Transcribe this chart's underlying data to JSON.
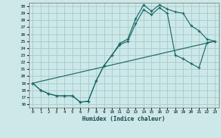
{
  "xlabel": "Humidex (Indice chaleur)",
  "bg_color": "#cce8e8",
  "grid_color": "#aacccc",
  "line_color": "#1a6666",
  "xlim": [
    -0.5,
    23.5
  ],
  "ylim": [
    15.5,
    30.5
  ],
  "xticks": [
    0,
    1,
    2,
    3,
    4,
    5,
    6,
    7,
    8,
    9,
    10,
    11,
    12,
    13,
    14,
    15,
    16,
    17,
    18,
    19,
    20,
    21,
    22,
    23
  ],
  "yticks": [
    16,
    17,
    18,
    19,
    20,
    21,
    22,
    23,
    24,
    25,
    26,
    27,
    28,
    29,
    30
  ],
  "line1_x": [
    0,
    1,
    2,
    3,
    4,
    5,
    6,
    7,
    8,
    9,
    10,
    11,
    12,
    13,
    14,
    15,
    16,
    17,
    18,
    19,
    20,
    21,
    22,
    23
  ],
  "line1_y": [
    19,
    18,
    17.5,
    17.2,
    17.2,
    17.2,
    16.3,
    16.4,
    19.3,
    21.5,
    23.0,
    24.7,
    25.3,
    28.2,
    30.2,
    29.3,
    30.2,
    29.6,
    29.2,
    29.0,
    27.2,
    26.5,
    25.3,
    25.0
  ],
  "line2_x": [
    0,
    1,
    2,
    3,
    4,
    5,
    6,
    7,
    8,
    9,
    10,
    11,
    12,
    13,
    14,
    15,
    16,
    17,
    18,
    19,
    20,
    21,
    22,
    23
  ],
  "line2_y": [
    19,
    18,
    17.5,
    17.2,
    17.2,
    17.2,
    16.3,
    16.4,
    19.3,
    21.5,
    23.0,
    24.5,
    25.0,
    27.5,
    29.5,
    28.8,
    29.8,
    29.0,
    23.0,
    22.5,
    21.8,
    21.2,
    24.8,
    25.0
  ],
  "line3_x": [
    0,
    23
  ],
  "line3_y": [
    19,
    25.0
  ]
}
